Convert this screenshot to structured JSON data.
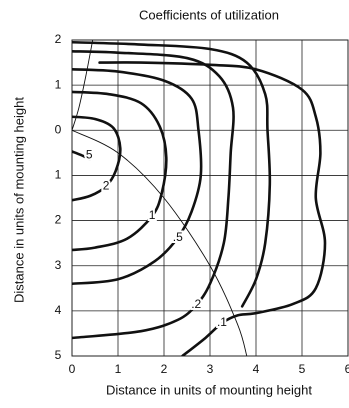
{
  "chart_data": {
    "type": "contour",
    "title": "Coefficients of utilization",
    "x_label": "Distance in units of mounting height",
    "y_label": "Distance in units of mounting height",
    "xlim": [
      0,
      6
    ],
    "ylim": [
      -5,
      2
    ],
    "xticks": [
      0,
      1,
      2,
      3,
      4,
      5,
      6
    ],
    "yticks": [
      2,
      1,
      0,
      {
        "value": -1,
        "label": "1"
      },
      {
        "value": -2,
        "label": "2"
      },
      {
        "value": -3,
        "label": "3"
      },
      {
        "value": -4,
        "label": "4"
      },
      {
        "value": -5,
        "label": "5"
      }
    ],
    "grid": true,
    "series": [
      {
        "name": "5",
        "x": [
          0,
          0.2,
          0.38
        ],
        "y": [
          -0.47,
          -0.55,
          -0.64
        ]
      },
      {
        "name": "2",
        "x": [
          0,
          0.5,
          0.9,
          1.05,
          0.95,
          0.74,
          0.4,
          0
        ],
        "y": [
          0.3,
          0.25,
          0.05,
          -0.4,
          -0.9,
          -1.24,
          -1.45,
          -1.55
        ]
      },
      {
        "name": "1",
        "x": [
          0,
          0.8,
          1.5,
          1.9,
          2.05,
          1.95,
          1.74,
          1.2,
          0.5,
          0
        ],
        "y": [
          0.85,
          0.8,
          0.6,
          0.1,
          -0.6,
          -1.4,
          -1.9,
          -2.4,
          -2.6,
          -2.65
        ]
      },
      {
        "name": ".5",
        "x": [
          0,
          1.0,
          2.0,
          2.6,
          2.75,
          2.8,
          2.6,
          2.3,
          1.8,
          1.0,
          0
        ],
        "y": [
          1.35,
          1.3,
          1.1,
          0.7,
          0,
          -1.0,
          -1.8,
          -2.38,
          -2.9,
          -3.3,
          -3.4
        ]
      },
      {
        "name": ".2",
        "x": [
          0,
          1.0,
          2.5,
          3.2,
          3.5,
          3.45,
          3.4,
          3.3,
          3.0,
          2.7,
          2.3,
          1.5,
          0
        ],
        "y": [
          1.75,
          1.72,
          1.6,
          1.2,
          0.5,
          -0.5,
          -1.5,
          -2.5,
          -3.4,
          -3.87,
          -4.2,
          -4.45,
          -4.6
        ]
      },
      {
        "x": [
          0,
          1.5,
          3.0,
          3.8,
          4.2,
          4.25,
          4.3,
          4.2,
          4.0,
          3.7
        ],
        "y": [
          1.95,
          1.9,
          1.8,
          1.5,
          0.8,
          0,
          -1.2,
          -2.5,
          -3.3,
          -3.9
        ]
      },
      {
        "name": ".1",
        "x": [
          0.6,
          1.5,
          3.0,
          4.0,
          5.0,
          5.3,
          5.4,
          5.3,
          5.5,
          5.3,
          4.8,
          4.0,
          3.6,
          3.26,
          2.9,
          2.4
        ],
        "y": [
          1.5,
          1.5,
          1.45,
          1.35,
          0.9,
          0.3,
          -0.5,
          -1.5,
          -2.5,
          -3.5,
          -3.85,
          -4.05,
          -4.1,
          -4.27,
          -4.6,
          -5.0
        ]
      }
    ],
    "curves": [
      {
        "x": [
          0,
          0.15,
          0.3,
          0.45
        ],
        "y": [
          0,
          0.5,
          1.2,
          2
        ]
      },
      {
        "x": [
          0,
          1,
          2,
          3,
          3.6,
          3.8
        ],
        "y": [
          0,
          -0.5,
          -1.5,
          -3,
          -4.3,
          -5
        ]
      }
    ]
  }
}
